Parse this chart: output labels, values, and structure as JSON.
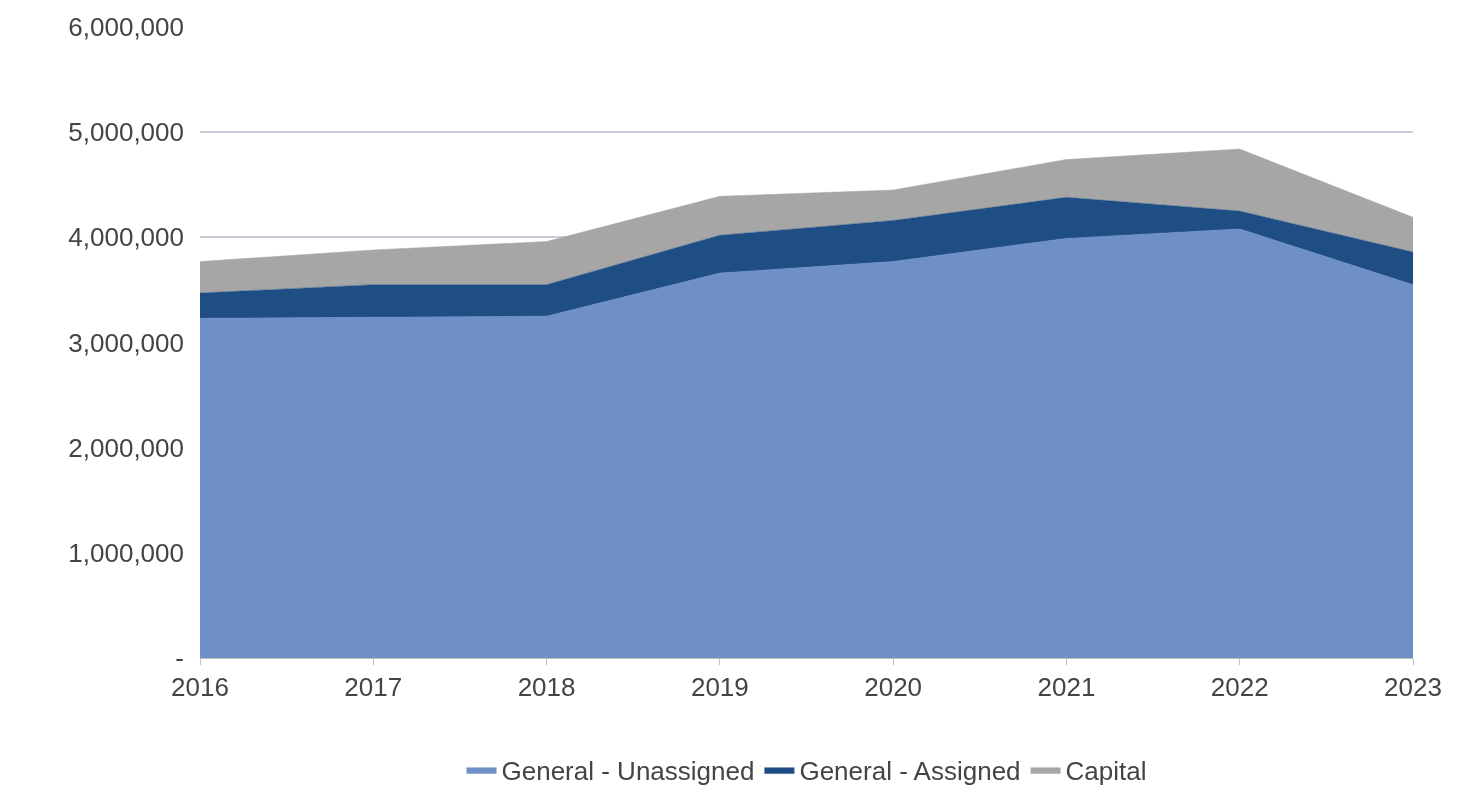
{
  "chart_data": {
    "type": "area",
    "stacked": true,
    "categories": [
      "2016",
      "2017",
      "2018",
      "2019",
      "2020",
      "2021",
      "2022",
      "2023"
    ],
    "series": [
      {
        "name": "General - Unassigned",
        "color": "#6f90c6",
        "values": [
          3230000,
          3240000,
          3250000,
          3660000,
          3770000,
          3990000,
          4080000,
          3550000
        ]
      },
      {
        "name": "General - Assigned",
        "color": "#1f4e85",
        "values": [
          240000,
          310000,
          300000,
          360000,
          390000,
          390000,
          170000,
          310000
        ]
      },
      {
        "name": "Capital",
        "color": "#a6a6a6",
        "values": [
          300000,
          330000,
          410000,
          370000,
          290000,
          360000,
          590000,
          330000
        ]
      }
    ],
    "ylim": [
      0,
      6000000
    ],
    "yticks": [
      {
        "value": 0,
        "label": "-"
      },
      {
        "value": 1000000,
        "label": "1,000,000"
      },
      {
        "value": 2000000,
        "label": "2,000,000"
      },
      {
        "value": 3000000,
        "label": "3,000,000"
      },
      {
        "value": 4000000,
        "label": "4,000,000"
      },
      {
        "value": 5000000,
        "label": "5,000,000"
      },
      {
        "value": 6000000,
        "label": "6,000,000"
      }
    ],
    "grid": "y",
    "legend": "bottom"
  }
}
